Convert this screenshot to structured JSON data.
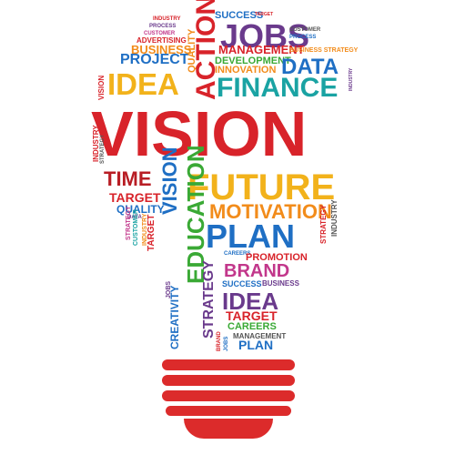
{
  "words": {
    "success_top": "SUCCESS",
    "target_top": "TARGET",
    "jobs_top": "JOBS",
    "management": "MANAGEMENT",
    "business_strategy": "BUSINESS STRATEGY",
    "development": "DEVELOPMENT",
    "innovation": "INNOVATION",
    "data": "DATA",
    "project": "PROJECT",
    "business_left": "BUSINESS",
    "advertising_left": "ADVERTISING",
    "customer": "CUSTOMER",
    "process": "PROCESS",
    "industry": "INDUSTRY",
    "idea_top": "IDEA",
    "action": "ACTION",
    "quality_vert": "QUALITY",
    "finance": "FINANCE",
    "vision_side": "VISION",
    "vision_big": "VISION",
    "time": "TIME",
    "target_mid": "TARGET",
    "quality_mid": "QUALITY",
    "vision_vert": "VISION",
    "future": "FUTURE",
    "motivation": "MOTIVATION",
    "plan_big": "PLAN",
    "target_vert": "TARGET",
    "education": "EDUCATION",
    "careers_small": "CAREERS",
    "promotion": "PROMOTION",
    "brand": "BRAND",
    "success_mid": "SUCCESS",
    "business_mid": "BUSINESS",
    "idea_mid": "IDEA",
    "target_low": "TARGET",
    "careers_low": "CAREERS",
    "management_low": "MANAGEMENT",
    "plan_low": "PLAN",
    "creativity": "CREATIVITY",
    "strategy": "STRATEGY",
    "jobs_low": "JOBS",
    "brand_small": "BRAND",
    "industry_side": "INDUSTRY",
    "strategy_small": "STRATEGY",
    "customer_small": "CUSTOMER",
    "data_small": "DATA"
  },
  "colors": {
    "red": "#d8232a",
    "dark_red": "#b81d24",
    "purple": "#6a3a8c",
    "blue": "#1f6fc4",
    "teal": "#1aa3a3",
    "green": "#3aa935",
    "orange": "#f28c1b",
    "yellow": "#f2b21b",
    "magenta": "#c2378b",
    "gray": "#555555"
  },
  "base_bars": 5
}
